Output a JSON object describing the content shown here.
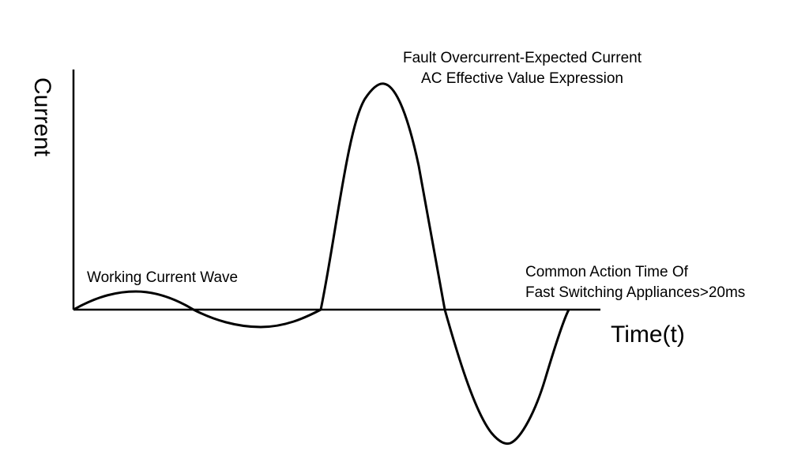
{
  "diagram": {
    "y_axis_label": "Current",
    "x_axis_label": "Time(t)",
    "annotations": {
      "fault_line1": "Fault Overcurrent-Expected Current",
      "fault_line2": "AC Effective Value Expression",
      "working": "Working Current Wave",
      "action_line1": "Common Action Time Of",
      "action_line2": "Fast Switching Appliances>20ms"
    },
    "line_color": "#000000"
  }
}
